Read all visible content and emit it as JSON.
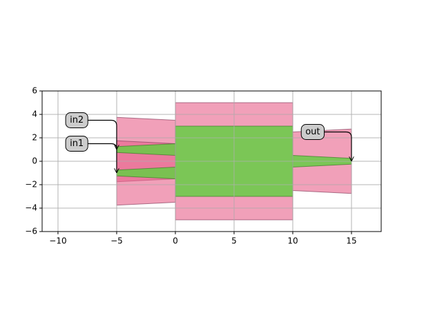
{
  "chart_data": {
    "type": "polygon",
    "xlim": [
      -11.35,
      17.53
    ],
    "ylim": [
      -6,
      6
    ],
    "xticks": [
      {
        "value": -10,
        "label": "−10"
      },
      {
        "value": -5,
        "label": "−5"
      },
      0,
      5,
      10,
      15
    ],
    "yticks": [
      {
        "value": -6,
        "label": "−6"
      },
      {
        "value": -4,
        "label": "−4"
      },
      {
        "value": -2,
        "label": "−2"
      },
      0,
      2,
      4,
      6
    ],
    "grid": true,
    "polygons": [
      {
        "x": [
          -5,
          0,
          0,
          -5
        ],
        "y": [
          3.75,
          3.5,
          -1.5,
          -1.75
        ],
        "color": "#e8608a"
      },
      {
        "x": [
          -5,
          0,
          0,
          -5
        ],
        "y": [
          1.75,
          1.5,
          -3.5,
          -3.75
        ],
        "color": "#e8608a"
      },
      {
        "x": [
          0,
          10,
          10,
          0
        ],
        "y": [
          5,
          5,
          -5,
          -5
        ],
        "color": "#e8608a"
      },
      {
        "x": [
          10,
          15,
          15,
          10
        ],
        "y": [
          2.5,
          2.75,
          -2.75,
          -2.5
        ],
        "color": "#e8608a"
      },
      {
        "x": [
          -5,
          0,
          0,
          -5
        ],
        "y": [
          1.25,
          1.5,
          0.5,
          0.75
        ],
        "color": "#66cc44"
      },
      {
        "x": [
          -5,
          0,
          0,
          -5
        ],
        "y": [
          -0.75,
          -0.5,
          -1.5,
          -1.25
        ],
        "color": "#66cc44"
      },
      {
        "x": [
          0,
          10,
          10,
          0
        ],
        "y": [
          3,
          3,
          -3,
          -3
        ],
        "color": "#66cc44"
      },
      {
        "x": [
          10,
          15,
          15,
          10
        ],
        "y": [
          0.5,
          0.25,
          -0.25,
          -0.5
        ],
        "color": "#66cc44"
      }
    ],
    "annotations": [
      {
        "text": "in2",
        "xy": [
          -5,
          1
        ],
        "xytext": [
          -8.4,
          3.5
        ]
      },
      {
        "text": "in1",
        "xy": [
          -5,
          -1
        ],
        "xytext": [
          -8.4,
          1.5
        ]
      },
      {
        "text": "out",
        "xy": [
          15,
          0
        ],
        "xytext": [
          11.7,
          2.5
        ]
      }
    ]
  }
}
